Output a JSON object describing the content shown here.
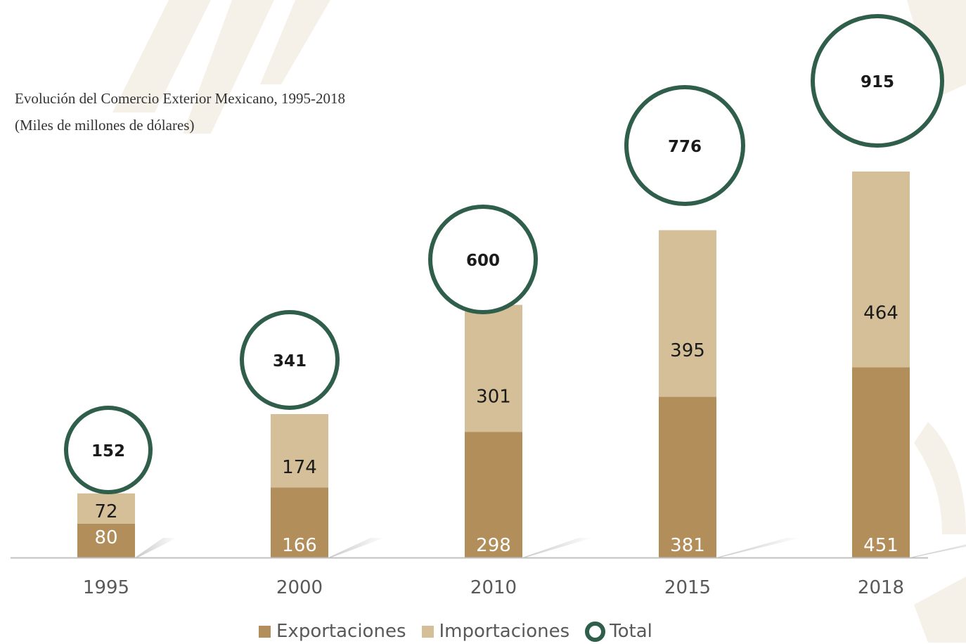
{
  "title": "Evolución del Comercio Exterior Mexicano, 1995-2018",
  "subtitle": "(Miles de millones de dólares)",
  "colors": {
    "exportaciones": "#b18e5a",
    "importaciones": "#d4bf98",
    "total": "#2f5e4b",
    "axis": "#c0c0c0",
    "label_dark": "#1a1a1a",
    "label_light": "#ffffff",
    "tick": "#595959",
    "decor": "#f4efe6"
  },
  "legend": {
    "exportaciones": "Exportaciones",
    "importaciones": "Importaciones",
    "total": "Total"
  },
  "chart_data": {
    "type": "bar",
    "stacked": true,
    "title": "Evolución del Comercio Exterior Mexicano, 1995-2018",
    "subtitle": "(Miles de millones de dólares)",
    "categories": [
      "1995",
      "2000",
      "2010",
      "2015",
      "2018"
    ],
    "series": [
      {
        "name": "Exportaciones",
        "values": [
          80,
          166,
          298,
          381,
          451
        ]
      },
      {
        "name": "Importaciones",
        "values": [
          72,
          174,
          301,
          395,
          464
        ]
      },
      {
        "name": "Total",
        "values": [
          152,
          341,
          600,
          776,
          915
        ],
        "marker": "circle"
      }
    ],
    "ylim": [
      0,
      1000
    ],
    "grid": false,
    "legend_position": "bottom"
  }
}
